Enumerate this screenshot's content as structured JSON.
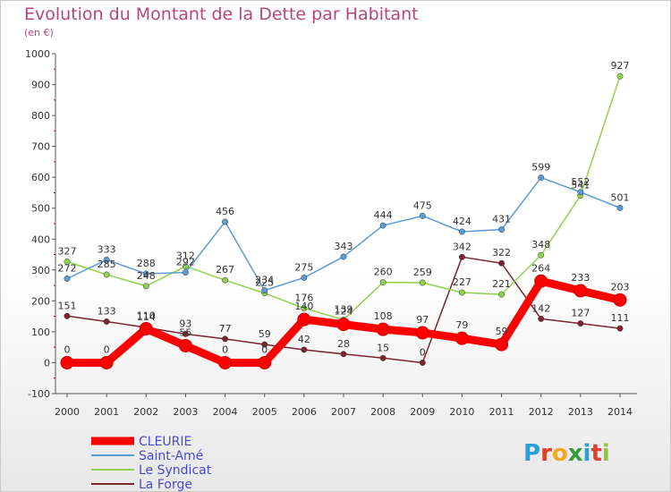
{
  "title": "Evolution du Montant de la Dette par Habitant",
  "subtitle": "(en €)",
  "logo": {
    "text": "Proxiti",
    "letters": [
      "P",
      "r",
      "o",
      "x",
      "i",
      "t",
      "i"
    ],
    "colors": [
      "#2aa0d8",
      "#e0412e",
      "#f5a623",
      "#3a9b3a",
      "#2aa0d8",
      "#e0412e",
      "#8cc63f"
    ]
  },
  "chart_data": {
    "type": "line",
    "title": "Evolution du Montant de la Dette par Habitant",
    "subtitle": "(en €)",
    "xlabel": "",
    "ylabel": "",
    "x": [
      "2000",
      "2001",
      "2002",
      "2003",
      "2004",
      "2005",
      "2006",
      "2007",
      "2008",
      "2009",
      "2010",
      "2011",
      "2012",
      "2013",
      "2014"
    ],
    "ylim": [
      -100,
      1000
    ],
    "yticks": [
      -100,
      0,
      100,
      200,
      300,
      400,
      500,
      600,
      700,
      800,
      900,
      1000
    ],
    "ytick_labels": [
      "-100",
      "0",
      "100",
      "200",
      "300",
      "400",
      "500",
      "600",
      "700",
      "800",
      "900",
      "1000"
    ],
    "grid": false,
    "legend": "bottom-left",
    "series": [
      {
        "name": "CLEURIE",
        "color": "#ff0000",
        "values": [
          0,
          0,
          110,
          55,
          0,
          0,
          140,
          124,
          108,
          97,
          79,
          59,
          264,
          233,
          203
        ],
        "labels": [
          "0",
          "0",
          "110",
          "55",
          "0",
          "0",
          "140",
          "124",
          "108",
          "97",
          "79",
          "59",
          "264",
          "233",
          "203"
        ]
      },
      {
        "name": "Saint-Amé",
        "color": "#5b9bd5",
        "values": [
          272,
          333,
          288,
          292,
          456,
          234,
          275,
          343,
          444,
          475,
          424,
          431,
          599,
          552,
          501
        ],
        "labels": [
          "272",
          "333",
          "288",
          "292",
          "456",
          "234",
          "275",
          "343",
          "444",
          "475",
          "424",
          "431",
          "599",
          "552",
          "501"
        ]
      },
      {
        "name": "Le Syndicat",
        "color": "#8fd14f",
        "values": [
          327,
          285,
          248,
          312,
          267,
          225,
          176,
          139,
          260,
          259,
          227,
          221,
          348,
          541,
          927
        ],
        "labels": [
          "327",
          "285",
          "248",
          "312",
          "267",
          "225",
          "176",
          "139",
          "260",
          "259",
          "227",
          "221",
          "348",
          "541",
          "927"
        ]
      },
      {
        "name": "La Forge",
        "color": "#7a2430",
        "values": [
          151,
          133,
          114,
          93,
          77,
          59,
          42,
          28,
          15,
          0,
          342,
          322,
          142,
          127,
          111
        ],
        "labels": [
          "151",
          "133",
          "114",
          "93",
          "77",
          "59",
          "42",
          "28",
          "15",
          "0",
          "342",
          "322",
          "142",
          "127",
          "111"
        ]
      }
    ]
  }
}
